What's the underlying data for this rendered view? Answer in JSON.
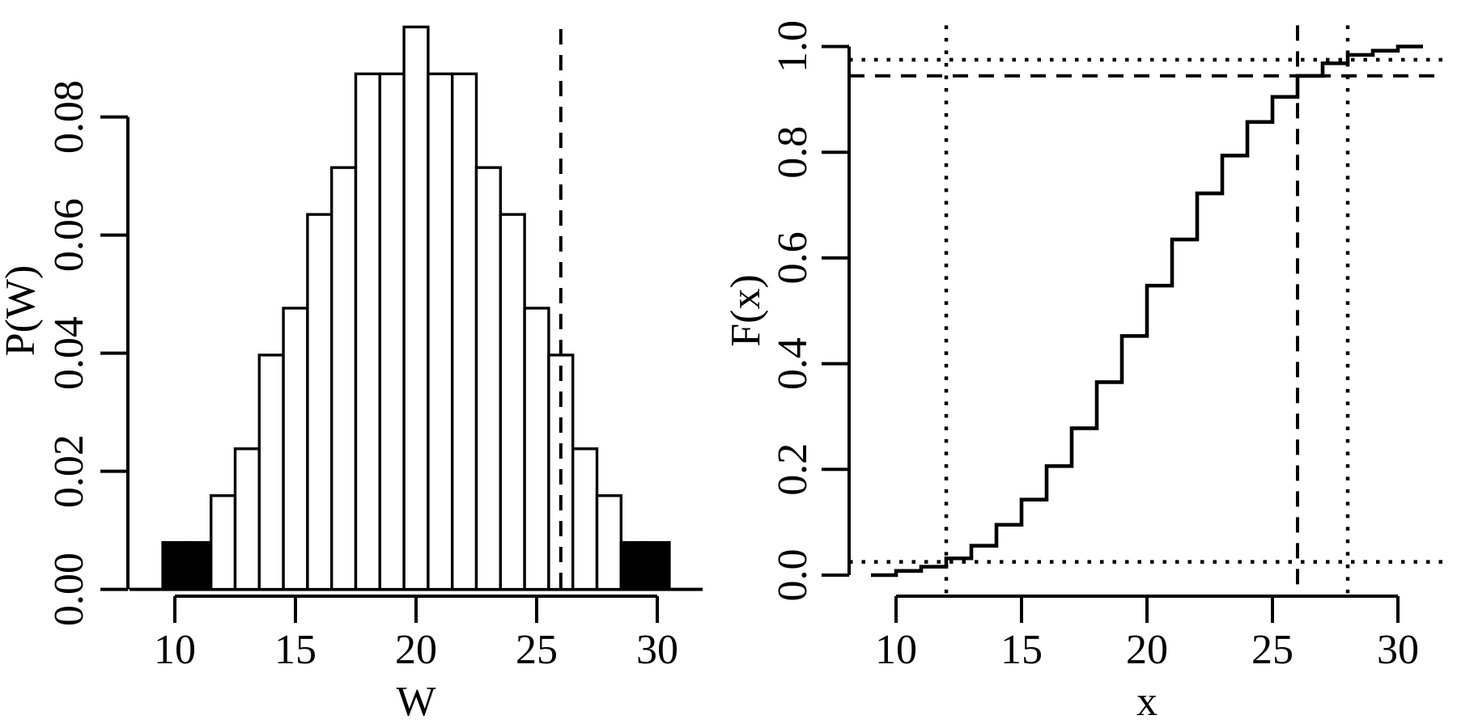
{
  "figure": {
    "background": "#ffffff",
    "ink": "#000000",
    "description": "Two-panel base-R style statistical figure: Wilcoxon rank-sum W distribution pmf (left) and cdf (right)"
  },
  "chart_data": [
    {
      "type": "bar",
      "panel": "left",
      "title": "",
      "xlabel": "W",
      "ylabel": "P(W)",
      "categories": [
        10,
        11,
        12,
        13,
        14,
        15,
        16,
        17,
        18,
        19,
        20,
        21,
        22,
        23,
        24,
        25,
        26,
        27,
        28,
        29,
        30
      ],
      "values": [
        0.00794,
        0.00794,
        0.01587,
        0.02381,
        0.03968,
        0.04762,
        0.06349,
        0.07143,
        0.0873,
        0.0873,
        0.09524,
        0.0873,
        0.0873,
        0.07143,
        0.06349,
        0.04762,
        0.03968,
        0.02381,
        0.01587,
        0.00794,
        0.00794
      ],
      "bar_width": 1,
      "default_fill": "#ffffff",
      "highlight_fill": "#000000",
      "highlighted_categories": [
        10,
        11,
        29,
        30
      ],
      "x_ticks": [
        10,
        15,
        20,
        25,
        30
      ],
      "x_tick_labels": [
        "10",
        "15",
        "20",
        "25",
        "30"
      ],
      "y_ticks": [
        0,
        0.02,
        0.04,
        0.06,
        0.08
      ],
      "y_tick_labels": [
        "0.00",
        "0.02",
        "0.04",
        "0.06",
        "0.08"
      ],
      "xlim": [
        8.12,
        31.88
      ],
      "ylim": [
        0,
        0.099
      ],
      "grid": false,
      "legend": null,
      "reference_lines": [
        {
          "orient": "v",
          "style": "dashed",
          "value": 26
        }
      ]
    },
    {
      "type": "line",
      "panel": "right",
      "step": true,
      "title": "",
      "xlabel": "x",
      "ylabel": "F(x)",
      "x": [
        9,
        10,
        11,
        12,
        13,
        14,
        15,
        16,
        17,
        18,
        19,
        20,
        21,
        22,
        23,
        24,
        25,
        26,
        27,
        28,
        29,
        30,
        31
      ],
      "values": [
        0,
        0.00794,
        0.01587,
        0.03175,
        0.05556,
        0.09524,
        0.14286,
        0.20635,
        0.27778,
        0.36508,
        0.45238,
        0.54762,
        0.63492,
        0.72222,
        0.79365,
        0.85714,
        0.90476,
        0.94444,
        0.96825,
        0.98413,
        0.99206,
        1,
        1
      ],
      "x_ticks": [
        10,
        15,
        20,
        25,
        30
      ],
      "x_tick_labels": [
        "10",
        "15",
        "20",
        "25",
        "30"
      ],
      "y_ticks": [
        0,
        0.2,
        0.4,
        0.6,
        0.8,
        1.0
      ],
      "y_tick_labels": [
        "0.0",
        "0.2",
        "0.4",
        "0.6",
        "0.8",
        "1.0"
      ],
      "xlim": [
        8.12,
        31.88
      ],
      "ylim": [
        -0.04,
        1.04
      ],
      "grid": false,
      "legend": null,
      "reference_lines": [
        {
          "orient": "v",
          "style": "dashed",
          "value": 26
        },
        {
          "orient": "h",
          "style": "dashed",
          "value": 0.94444
        },
        {
          "orient": "v",
          "style": "dotted",
          "value": 12
        },
        {
          "orient": "v",
          "style": "dotted",
          "value": 28
        },
        {
          "orient": "h",
          "style": "dotted",
          "value": 0.025
        },
        {
          "orient": "h",
          "style": "dotted",
          "value": 0.975
        }
      ]
    }
  ]
}
